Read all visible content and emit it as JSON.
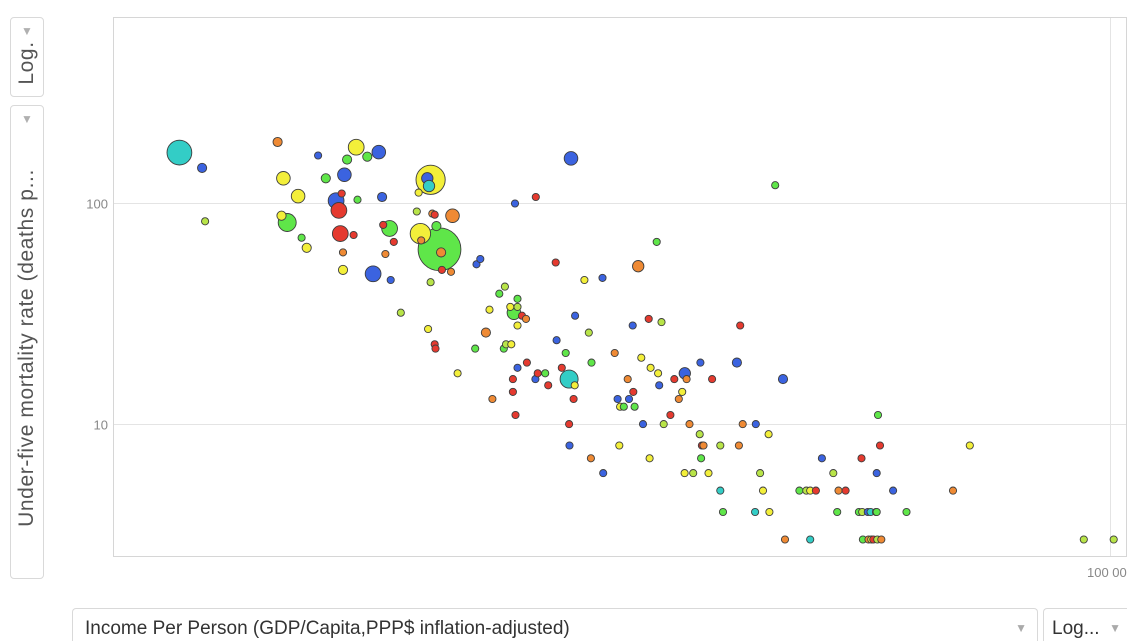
{
  "y_scale_control": {
    "label": "Log.",
    "caret": "▼"
  },
  "y_axis_control": {
    "label": "Under-five mortality rate (deaths p...",
    "caret": "▼"
  },
  "x_axis_control": {
    "label": "Income Per Person (GDP/Capita,PPP$ inflation-adjusted)",
    "caret": "▼"
  },
  "x_scale_control": {
    "label": "Log...",
    "caret": "▼"
  },
  "chart_data": {
    "type": "scatter",
    "xlabel": "Income Per Person (GDP/Capita,PPP$ inflation-adjusted)",
    "ylabel": "Under-five mortality rate (deaths p...",
    "x_scale": "log",
    "y_scale": "log",
    "xlim": [
      350,
      110000
    ],
    "ylim": [
      2.5,
      700
    ],
    "y_ticks": [
      {
        "value": 100,
        "label": "100"
      },
      {
        "value": 10,
        "label": "10"
      }
    ],
    "x_ticks": [
      {
        "value": 100000,
        "label": "100 000"
      }
    ],
    "grid": true,
    "legend": "none",
    "colors": {
      "red": "#e53a2f",
      "orange": "#ef8a34",
      "yellow": "#f3ef3a",
      "lime": "#b8e448",
      "green": "#5fe649",
      "cyan": "#33cdc6",
      "blue": "#3b63e0"
    },
    "points": [
      {
        "x": 510,
        "y": 170,
        "s": 10,
        "c": "cyan"
      },
      {
        "x": 580,
        "y": 145,
        "s": 3,
        "c": "blue"
      },
      {
        "x": 590,
        "y": 83,
        "s": 2,
        "c": "lime"
      },
      {
        "x": 890,
        "y": 190,
        "s": 3,
        "c": "orange"
      },
      {
        "x": 920,
        "y": 130,
        "s": 5,
        "c": "yellow"
      },
      {
        "x": 910,
        "y": 88,
        "s": 3,
        "c": "yellow"
      },
      {
        "x": 940,
        "y": 82,
        "s": 7,
        "c": "green"
      },
      {
        "x": 1000,
        "y": 108,
        "s": 5,
        "c": "yellow"
      },
      {
        "x": 1020,
        "y": 70,
        "s": 2,
        "c": "green"
      },
      {
        "x": 1050,
        "y": 63,
        "s": 3,
        "c": "yellow"
      },
      {
        "x": 1120,
        "y": 165,
        "s": 2,
        "c": "blue"
      },
      {
        "x": 1170,
        "y": 130,
        "s": 3,
        "c": "green"
      },
      {
        "x": 1240,
        "y": 103,
        "s": 6,
        "c": "blue"
      },
      {
        "x": 1260,
        "y": 93,
        "s": 6,
        "c": "red"
      },
      {
        "x": 1270,
        "y": 73,
        "s": 6,
        "c": "red"
      },
      {
        "x": 1290,
        "y": 50,
        "s": 3,
        "c": "yellow"
      },
      {
        "x": 1290,
        "y": 60,
        "s": 2,
        "c": "orange"
      },
      {
        "x": 1280,
        "y": 111,
        "s": 2,
        "c": "red"
      },
      {
        "x": 1300,
        "y": 135,
        "s": 5,
        "c": "blue"
      },
      {
        "x": 1320,
        "y": 158,
        "s": 3,
        "c": "green"
      },
      {
        "x": 1390,
        "y": 180,
        "s": 6,
        "c": "yellow"
      },
      {
        "x": 1370,
        "y": 72,
        "s": 2,
        "c": "red"
      },
      {
        "x": 1400,
        "y": 104,
        "s": 2,
        "c": "green"
      },
      {
        "x": 1480,
        "y": 163,
        "s": 3,
        "c": "green"
      },
      {
        "x": 1530,
        "y": 48,
        "s": 6,
        "c": "blue"
      },
      {
        "x": 1580,
        "y": 171,
        "s": 5,
        "c": "blue"
      },
      {
        "x": 1610,
        "y": 107,
        "s": 3,
        "c": "blue"
      },
      {
        "x": 1620,
        "y": 80,
        "s": 2,
        "c": "red"
      },
      {
        "x": 1640,
        "y": 59,
        "s": 2,
        "c": "orange"
      },
      {
        "x": 1680,
        "y": 77,
        "s": 6,
        "c": "green"
      },
      {
        "x": 1690,
        "y": 45,
        "s": 2,
        "c": "blue"
      },
      {
        "x": 1720,
        "y": 67,
        "s": 2,
        "c": "red"
      },
      {
        "x": 1790,
        "y": 32,
        "s": 2,
        "c": "lime"
      },
      {
        "x": 1960,
        "y": 92,
        "s": 2,
        "c": "lime"
      },
      {
        "x": 1980,
        "y": 112,
        "s": 2,
        "c": "yellow"
      },
      {
        "x": 2000,
        "y": 73,
        "s": 8,
        "c": "yellow"
      },
      {
        "x": 2010,
        "y": 68,
        "s": 2,
        "c": "orange"
      },
      {
        "x": 2120,
        "y": 128,
        "s": 12,
        "c": "yellow"
      },
      {
        "x": 2080,
        "y": 130,
        "s": 4,
        "c": "blue"
      },
      {
        "x": 2100,
        "y": 120,
        "s": 4,
        "c": "cyan"
      },
      {
        "x": 2140,
        "y": 90,
        "s": 2,
        "c": "orange"
      },
      {
        "x": 2170,
        "y": 89,
        "s": 2,
        "c": "red"
      },
      {
        "x": 2190,
        "y": 79,
        "s": 3,
        "c": "green"
      },
      {
        "x": 2230,
        "y": 62,
        "s": 18,
        "c": "green"
      },
      {
        "x": 2250,
        "y": 60,
        "s": 3,
        "c": "orange"
      },
      {
        "x": 2260,
        "y": 50,
        "s": 2,
        "c": "red"
      },
      {
        "x": 2120,
        "y": 44,
        "s": 2,
        "c": "lime"
      },
      {
        "x": 2380,
        "y": 49,
        "s": 2,
        "c": "orange"
      },
      {
        "x": 2400,
        "y": 88,
        "s": 5,
        "c": "orange"
      },
      {
        "x": 2090,
        "y": 27,
        "s": 2,
        "c": "yellow"
      },
      {
        "x": 2170,
        "y": 23,
        "s": 2,
        "c": "red"
      },
      {
        "x": 2180,
        "y": 22,
        "s": 2,
        "c": "red"
      },
      {
        "x": 2470,
        "y": 17,
        "s": 2,
        "c": "yellow"
      },
      {
        "x": 2750,
        "y": 53,
        "s": 2,
        "c": "blue"
      },
      {
        "x": 2810,
        "y": 56,
        "s": 2,
        "c": "blue"
      },
      {
        "x": 2730,
        "y": 22,
        "s": 2,
        "c": "green"
      },
      {
        "x": 2900,
        "y": 26,
        "s": 3,
        "c": "orange"
      },
      {
        "x": 2960,
        "y": 33,
        "s": 2,
        "c": "yellow"
      },
      {
        "x": 3130,
        "y": 39,
        "s": 2,
        "c": "green"
      },
      {
        "x": 3230,
        "y": 42,
        "s": 2,
        "c": "lime"
      },
      {
        "x": 3330,
        "y": 34,
        "s": 2,
        "c": "yellow"
      },
      {
        "x": 3400,
        "y": 32,
        "s": 5,
        "c": "green"
      },
      {
        "x": 3470,
        "y": 37,
        "s": 2,
        "c": "green"
      },
      {
        "x": 3470,
        "y": 34,
        "s": 2,
        "c": "lime"
      },
      {
        "x": 3470,
        "y": 28,
        "s": 2,
        "c": "yellow"
      },
      {
        "x": 3560,
        "y": 31,
        "s": 2,
        "c": "red"
      },
      {
        "x": 3640,
        "y": 30,
        "s": 2,
        "c": "orange"
      },
      {
        "x": 3210,
        "y": 22,
        "s": 2,
        "c": "green"
      },
      {
        "x": 3250,
        "y": 23,
        "s": 2,
        "c": "lime"
      },
      {
        "x": 3350,
        "y": 23,
        "s": 2,
        "c": "yellow"
      },
      {
        "x": 3010,
        "y": 13,
        "s": 2,
        "c": "orange"
      },
      {
        "x": 3380,
        "y": 16,
        "s": 2,
        "c": "red"
      },
      {
        "x": 3380,
        "y": 14,
        "s": 2,
        "c": "red"
      },
      {
        "x": 3430,
        "y": 11,
        "s": 2,
        "c": "red"
      },
      {
        "x": 3470,
        "y": 18,
        "s": 2,
        "c": "blue"
      },
      {
        "x": 3660,
        "y": 19,
        "s": 2,
        "c": "red"
      },
      {
        "x": 3840,
        "y": 16,
        "s": 2,
        "c": "blue"
      },
      {
        "x": 3890,
        "y": 17,
        "s": 2,
        "c": "red"
      },
      {
        "x": 4060,
        "y": 17,
        "s": 2,
        "c": "green"
      },
      {
        "x": 4130,
        "y": 15,
        "s": 2,
        "c": "red"
      },
      {
        "x": 4330,
        "y": 24,
        "s": 2,
        "c": "blue"
      },
      {
        "x": 3420,
        "y": 100,
        "s": 2,
        "c": "blue"
      },
      {
        "x": 3850,
        "y": 107,
        "s": 2,
        "c": "red"
      },
      {
        "x": 4310,
        "y": 54,
        "s": 2,
        "c": "red"
      },
      {
        "x": 4700,
        "y": 160,
        "s": 5,
        "c": "blue"
      },
      {
        "x": 4460,
        "y": 18,
        "s": 2,
        "c": "red"
      },
      {
        "x": 4560,
        "y": 21,
        "s": 2,
        "c": "green"
      },
      {
        "x": 4650,
        "y": 16,
        "s": 7,
        "c": "cyan"
      },
      {
        "x": 4770,
        "y": 13,
        "s": 2,
        "c": "red"
      },
      {
        "x": 4810,
        "y": 31,
        "s": 2,
        "c": "blue"
      },
      {
        "x": 4800,
        "y": 15,
        "s": 2,
        "c": "yellow"
      },
      {
        "x": 4650,
        "y": 10,
        "s": 2,
        "c": "red"
      },
      {
        "x": 4660,
        "y": 8,
        "s": 2,
        "c": "blue"
      },
      {
        "x": 5200,
        "y": 26,
        "s": 2,
        "c": "lime"
      },
      {
        "x": 5280,
        "y": 19,
        "s": 2,
        "c": "green"
      },
      {
        "x": 5260,
        "y": 7,
        "s": 2,
        "c": "orange"
      },
      {
        "x": 5070,
        "y": 45,
        "s": 2,
        "c": "yellow"
      },
      {
        "x": 5620,
        "y": 46,
        "s": 2,
        "c": "blue"
      },
      {
        "x": 5640,
        "y": 6,
        "s": 2,
        "c": "blue"
      },
      {
        "x": 6020,
        "y": 21,
        "s": 2,
        "c": "orange"
      },
      {
        "x": 6120,
        "y": 13,
        "s": 2,
        "c": "blue"
      },
      {
        "x": 6210,
        "y": 12,
        "s": 2,
        "c": "yellow"
      },
      {
        "x": 6340,
        "y": 12,
        "s": 2,
        "c": "green"
      },
      {
        "x": 6180,
        "y": 8,
        "s": 2,
        "c": "yellow"
      },
      {
        "x": 6480,
        "y": 16,
        "s": 2,
        "c": "orange"
      },
      {
        "x": 6530,
        "y": 13,
        "s": 2,
        "c": "blue"
      },
      {
        "x": 6690,
        "y": 14,
        "s": 2,
        "c": "red"
      },
      {
        "x": 6740,
        "y": 12,
        "s": 2,
        "c": "green"
      },
      {
        "x": 6670,
        "y": 28,
        "s": 2,
        "c": "blue"
      },
      {
        "x": 6880,
        "y": 52,
        "s": 4,
        "c": "orange"
      },
      {
        "x": 7000,
        "y": 20,
        "s": 2,
        "c": "yellow"
      },
      {
        "x": 7070,
        "y": 10,
        "s": 2,
        "c": "blue"
      },
      {
        "x": 7380,
        "y": 18,
        "s": 2,
        "c": "yellow"
      },
      {
        "x": 7340,
        "y": 7,
        "s": 2,
        "c": "yellow"
      },
      {
        "x": 7300,
        "y": 30,
        "s": 2,
        "c": "red"
      },
      {
        "x": 7640,
        "y": 67,
        "s": 2,
        "c": "green"
      },
      {
        "x": 7700,
        "y": 17,
        "s": 2,
        "c": "yellow"
      },
      {
        "x": 7850,
        "y": 29,
        "s": 2,
        "c": "lime"
      },
      {
        "x": 7750,
        "y": 15,
        "s": 2,
        "c": "blue"
      },
      {
        "x": 7950,
        "y": 10,
        "s": 2,
        "c": "lime"
      },
      {
        "x": 8440,
        "y": 16,
        "s": 2,
        "c": "red"
      },
      {
        "x": 8660,
        "y": 13,
        "s": 2,
        "c": "orange"
      },
      {
        "x": 8830,
        "y": 14,
        "s": 2,
        "c": "yellow"
      },
      {
        "x": 8260,
        "y": 11,
        "s": 2,
        "c": "red"
      },
      {
        "x": 8960,
        "y": 17,
        "s": 4,
        "c": "blue"
      },
      {
        "x": 9050,
        "y": 16,
        "s": 2,
        "c": "orange"
      },
      {
        "x": 9200,
        "y": 10,
        "s": 2,
        "c": "orange"
      },
      {
        "x": 8950,
        "y": 6,
        "s": 2,
        "c": "yellow"
      },
      {
        "x": 9400,
        "y": 6,
        "s": 2,
        "c": "lime"
      },
      {
        "x": 9790,
        "y": 19,
        "s": 2,
        "c": "blue"
      },
      {
        "x": 10460,
        "y": 16,
        "s": 2,
        "c": "red"
      },
      {
        "x": 9750,
        "y": 9,
        "s": 2,
        "c": "lime"
      },
      {
        "x": 9870,
        "y": 8,
        "s": 2,
        "c": "red"
      },
      {
        "x": 9960,
        "y": 8,
        "s": 2,
        "c": "orange"
      },
      {
        "x": 9830,
        "y": 7,
        "s": 2,
        "c": "green"
      },
      {
        "x": 10960,
        "y": 5,
        "s": 2,
        "c": "cyan"
      },
      {
        "x": 11130,
        "y": 4,
        "s": 2,
        "c": "green"
      },
      {
        "x": 10250,
        "y": 6,
        "s": 2,
        "c": "yellow"
      },
      {
        "x": 10960,
        "y": 8,
        "s": 2,
        "c": "lime"
      },
      {
        "x": 12040,
        "y": 19,
        "s": 3,
        "c": "blue"
      },
      {
        "x": 12270,
        "y": 28,
        "s": 2,
        "c": "red"
      },
      {
        "x": 12180,
        "y": 8,
        "s": 2,
        "c": "orange"
      },
      {
        "x": 12440,
        "y": 10,
        "s": 2,
        "c": "orange"
      },
      {
        "x": 13400,
        "y": 10,
        "s": 2,
        "c": "blue"
      },
      {
        "x": 13350,
        "y": 4,
        "s": 2,
        "c": "cyan"
      },
      {
        "x": 13730,
        "y": 6,
        "s": 2,
        "c": "lime"
      },
      {
        "x": 13960,
        "y": 5,
        "s": 2,
        "c": "yellow"
      },
      {
        "x": 14410,
        "y": 9,
        "s": 2,
        "c": "yellow"
      },
      {
        "x": 14960,
        "y": 121,
        "s": 2,
        "c": "green"
      },
      {
        "x": 14480,
        "y": 4,
        "s": 2,
        "c": "yellow"
      },
      {
        "x": 15640,
        "y": 16,
        "s": 3,
        "c": "blue"
      },
      {
        "x": 15820,
        "y": 3,
        "s": 2,
        "c": "orange"
      },
      {
        "x": 17160,
        "y": 5,
        "s": 2,
        "c": "green"
      },
      {
        "x": 17850,
        "y": 5,
        "s": 2,
        "c": "lime"
      },
      {
        "x": 18250,
        "y": 3,
        "s": 2,
        "c": "cyan"
      },
      {
        "x": 18250,
        "y": 5,
        "s": 2,
        "c": "yellow"
      },
      {
        "x": 18840,
        "y": 5,
        "s": 2,
        "c": "red"
      },
      {
        "x": 19500,
        "y": 7,
        "s": 2,
        "c": "blue"
      },
      {
        "x": 20800,
        "y": 6,
        "s": 2,
        "c": "lime"
      },
      {
        "x": 21270,
        "y": 4,
        "s": 2,
        "c": "green"
      },
      {
        "x": 21420,
        "y": 5,
        "s": 2,
        "c": "orange"
      },
      {
        "x": 22300,
        "y": 5,
        "s": 2,
        "c": "red"
      },
      {
        "x": 24050,
        "y": 4,
        "s": 2,
        "c": "green"
      },
      {
        "x": 24400,
        "y": 7,
        "s": 2,
        "c": "red"
      },
      {
        "x": 24500,
        "y": 4,
        "s": 2,
        "c": "lime"
      },
      {
        "x": 24600,
        "y": 3,
        "s": 2,
        "c": "green"
      },
      {
        "x": 25300,
        "y": 4,
        "s": 2,
        "c": "blue"
      },
      {
        "x": 25400,
        "y": 3,
        "s": 2,
        "c": "orange"
      },
      {
        "x": 25700,
        "y": 4,
        "s": 2,
        "c": "cyan"
      },
      {
        "x": 25800,
        "y": 3,
        "s": 2,
        "c": "yellow"
      },
      {
        "x": 26100,
        "y": 3,
        "s": 2,
        "c": "red"
      },
      {
        "x": 26500,
        "y": 4,
        "s": 2,
        "c": "lime"
      },
      {
        "x": 26600,
        "y": 4,
        "s": 2,
        "c": "green"
      },
      {
        "x": 26700,
        "y": 3,
        "s": 2,
        "c": "lime"
      },
      {
        "x": 27100,
        "y": 8,
        "s": 2,
        "c": "red"
      },
      {
        "x": 26800,
        "y": 11,
        "s": 2,
        "c": "green"
      },
      {
        "x": 26600,
        "y": 6,
        "s": 2,
        "c": "blue"
      },
      {
        "x": 27300,
        "y": 3,
        "s": 2,
        "c": "orange"
      },
      {
        "x": 29200,
        "y": 5,
        "s": 2,
        "c": "blue"
      },
      {
        "x": 31500,
        "y": 4,
        "s": 2,
        "c": "green"
      },
      {
        "x": 41000,
        "y": 5,
        "s": 2,
        "c": "orange"
      },
      {
        "x": 45100,
        "y": 8,
        "s": 2,
        "c": "yellow"
      },
      {
        "x": 86100,
        "y": 3,
        "s": 2,
        "c": "lime"
      },
      {
        "x": 102000,
        "y": 3,
        "s": 2,
        "c": "lime"
      }
    ]
  }
}
